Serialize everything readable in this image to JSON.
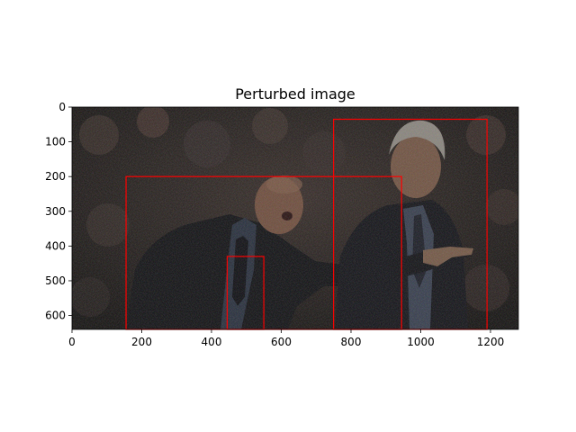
{
  "figure": {
    "title": "Perturbed image"
  },
  "axes": {
    "x_range": [
      0,
      1280
    ],
    "y_range": [
      640,
      0
    ],
    "x_ticks": [
      {
        "value": 0,
        "label": "0"
      },
      {
        "value": 200,
        "label": "200"
      },
      {
        "value": 400,
        "label": "400"
      },
      {
        "value": 600,
        "label": "600"
      },
      {
        "value": 800,
        "label": "800"
      },
      {
        "value": 1000,
        "label": "1000"
      },
      {
        "value": 1200,
        "label": "1200"
      }
    ],
    "y_ticks": [
      {
        "value": 0,
        "label": "0"
      },
      {
        "value": 100,
        "label": "100"
      },
      {
        "value": 200,
        "label": "200"
      },
      {
        "value": 300,
        "label": "300"
      },
      {
        "value": 400,
        "label": "400"
      },
      {
        "value": 500,
        "label": "500"
      },
      {
        "value": 600,
        "label": "600"
      }
    ]
  },
  "boxes": [
    {
      "x0": 155,
      "y0": 200,
      "x1": 945,
      "y1": 640
    },
    {
      "x0": 750,
      "y0": 35,
      "x1": 1190,
      "y1": 640
    },
    {
      "x0": 445,
      "y0": 430,
      "x1": 550,
      "y1": 640
    }
  ],
  "colors": {
    "box": "#ff0000",
    "frame": "#000000",
    "photo_background": "#1b1716",
    "suit": "#101014",
    "skin": "#7a5642",
    "hair": "#8a8580",
    "shirt": "#2a3140"
  }
}
